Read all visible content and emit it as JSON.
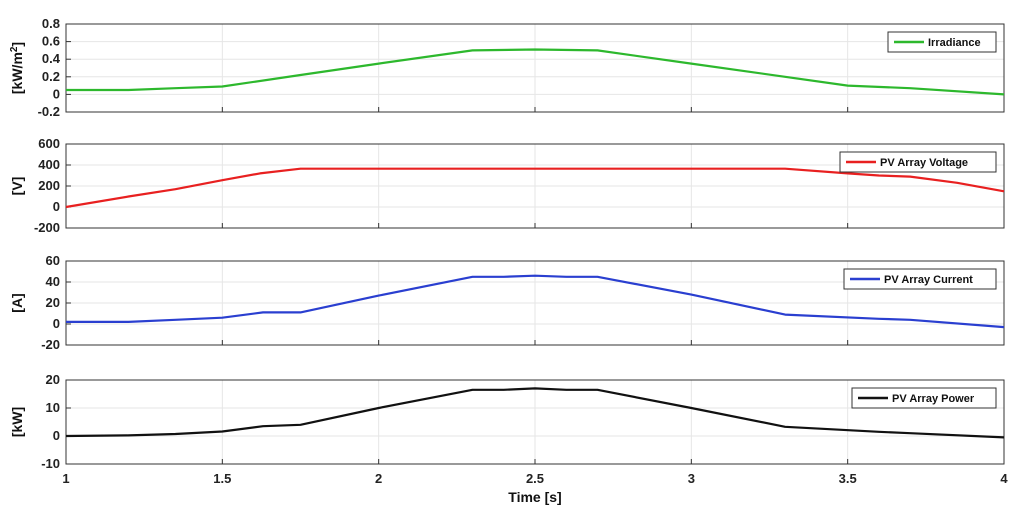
{
  "chart_data": [
    {
      "type": "line",
      "ylabel": "[kW/m²]",
      "ylabel_main": "[kW/m",
      "ylabel_sup": "2",
      "ylabel_tail": "]",
      "ylim": [
        -0.2,
        0.8
      ],
      "yticks": [
        "-0.2",
        "0",
        "0.2",
        "0.4",
        "0.6",
        "0.8"
      ],
      "ytick_values": [
        -0.2,
        0,
        0.2,
        0.4,
        0.6,
        0.8
      ],
      "xlim": [
        1,
        4
      ],
      "grid": true,
      "legend_position": "top-right",
      "series": [
        {
          "name": "Irradiance",
          "color": "#2db82d",
          "x": [
            1,
            1.2,
            1.35,
            1.5,
            1.75,
            2,
            2.3,
            2.5,
            2.7,
            3,
            3.3,
            3.5,
            3.7,
            4
          ],
          "y": [
            0.05,
            0.05,
            0.07,
            0.09,
            0.22,
            0.35,
            0.5,
            0.51,
            0.5,
            0.35,
            0.2,
            0.1,
            0.07,
            0
          ]
        }
      ]
    },
    {
      "type": "line",
      "ylabel": "[V]",
      "ylim": [
        -200,
        600
      ],
      "yticks": [
        "-200",
        "0",
        "200",
        "400",
        "600"
      ],
      "ytick_values": [
        -200,
        0,
        200,
        400,
        600
      ],
      "xlim": [
        1,
        4
      ],
      "grid": true,
      "legend_position": "top-right",
      "series": [
        {
          "name": "PV Array Voltage",
          "color": "#e82020",
          "x": [
            1,
            1.2,
            1.35,
            1.5,
            1.62,
            1.75,
            2,
            2.5,
            3,
            3.3,
            3.5,
            3.6,
            3.7,
            3.85,
            4
          ],
          "y": [
            0,
            100,
            170,
            255,
            320,
            365,
            365,
            365,
            365,
            365,
            320,
            300,
            290,
            230,
            150
          ]
        }
      ]
    },
    {
      "type": "line",
      "ylabel": "[A]",
      "ylim": [
        -20,
        60
      ],
      "yticks": [
        "-20",
        "0",
        "20",
        "40",
        "60"
      ],
      "ytick_values": [
        -20,
        0,
        20,
        40,
        60
      ],
      "xlim": [
        1,
        4
      ],
      "grid": true,
      "legend_position": "top-right",
      "series": [
        {
          "name": "PV Array Current",
          "color": "#2a3fd0",
          "x": [
            1,
            1.2,
            1.35,
            1.5,
            1.63,
            1.75,
            2,
            2.3,
            2.4,
            2.5,
            2.6,
            2.7,
            3,
            3.3,
            3.6,
            3.7,
            4
          ],
          "y": [
            2,
            2,
            4,
            6,
            11,
            11,
            27,
            45,
            45,
            46,
            45,
            45,
            28,
            9,
            5,
            4,
            -3
          ]
        }
      ]
    },
    {
      "type": "line",
      "ylabel": "[kW]",
      "xlabel": "Time [s]",
      "ylim": [
        -10,
        20
      ],
      "yticks": [
        "-10",
        "0",
        "10",
        "20"
      ],
      "ytick_values": [
        -10,
        0,
        10,
        20
      ],
      "xlim": [
        1,
        4
      ],
      "xticks": [
        "1",
        "1.5",
        "2",
        "2.5",
        "3",
        "3.5",
        "4"
      ],
      "xtick_values": [
        1,
        1.5,
        2,
        2.5,
        3,
        3.5,
        4
      ],
      "grid": true,
      "legend_position": "top-right",
      "series": [
        {
          "name": "PV Array Power",
          "color": "#111111",
          "x": [
            1,
            1.2,
            1.35,
            1.5,
            1.63,
            1.75,
            2,
            2.3,
            2.4,
            2.5,
            2.6,
            2.7,
            3,
            3.3,
            3.6,
            3.7,
            4
          ],
          "y": [
            0,
            0.2,
            0.7,
            1.6,
            3.5,
            4,
            10,
            16.5,
            16.5,
            17,
            16.5,
            16.5,
            10,
            3.3,
            1.5,
            1,
            -0.5
          ]
        }
      ]
    }
  ],
  "xticks": [
    "1",
    "1.5",
    "2",
    "2.5",
    "3",
    "3.5",
    "4"
  ],
  "xtick_values": [
    1,
    1.5,
    2,
    2.5,
    3,
    3.5,
    4
  ],
  "xlabel": "Time [s]"
}
